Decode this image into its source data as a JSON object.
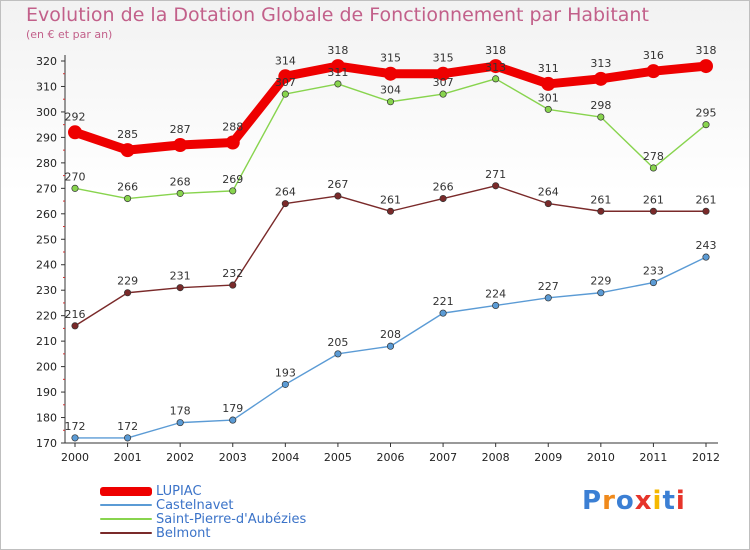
{
  "chart_data": {
    "type": "line",
    "title": "Evolution de la Dotation Globale de Fonctionnement par Habitant",
    "subtitle": "(en € et par an)",
    "x": [
      "2000",
      "2001",
      "2002",
      "2003",
      "2004",
      "2005",
      "2006",
      "2007",
      "2008",
      "2009",
      "2010",
      "2011",
      "2012"
    ],
    "ylim": [
      170,
      320
    ],
    "yticks": [
      170,
      180,
      190,
      200,
      210,
      220,
      230,
      240,
      250,
      260,
      270,
      280,
      290,
      300,
      310,
      320
    ],
    "grid": false,
    "legend_position": "bottom-left",
    "series": [
      {
        "name": "LUPIAC",
        "color": "#ee0000",
        "values": [
          292,
          285,
          287,
          288,
          314,
          318,
          315,
          315,
          318,
          311,
          313,
          316,
          318
        ]
      },
      {
        "name": "Castelnavet",
        "color": "#5b9bd5",
        "values": [
          172,
          172,
          178,
          179,
          193,
          205,
          208,
          221,
          224,
          227,
          229,
          233,
          243
        ]
      },
      {
        "name": "Saint-Pierre-d'Aubézies",
        "color": "#88d44e",
        "values": [
          270,
          266,
          268,
          269,
          307,
          311,
          304,
          307,
          313,
          301,
          298,
          278,
          295
        ]
      },
      {
        "name": "Belmont",
        "color": "#7a2a2a",
        "values": [
          216,
          229,
          231,
          232,
          264,
          267,
          261,
          266,
          271,
          264,
          261,
          261,
          261
        ]
      }
    ]
  },
  "logo": {
    "letters": [
      "P",
      "r",
      "o",
      "x",
      "i",
      "t",
      "i"
    ],
    "colors": [
      "#3b7fd4",
      "#f08a1c",
      "#3b7fd4",
      "#e6342a",
      "#f5b800",
      "#3b7fd4",
      "#e6342a"
    ]
  }
}
